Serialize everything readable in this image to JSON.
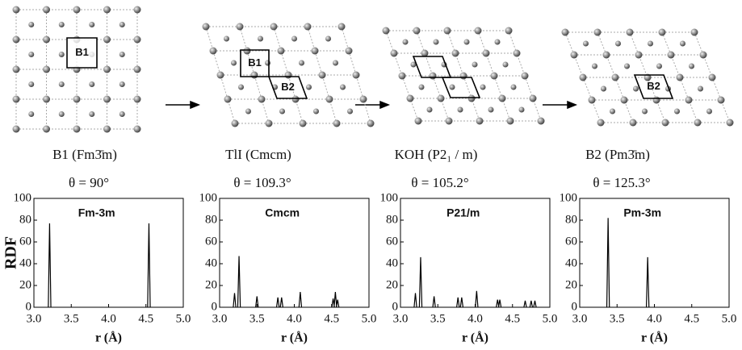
{
  "structures": [
    {
      "label": "B1 (Fm3̄m)",
      "angle": "θ = 90°",
      "cells": [
        "B1"
      ]
    },
    {
      "label": "TlI (Cmcm)",
      "angle": "θ = 109.3°",
      "cells": [
        "B1",
        "B2"
      ]
    },
    {
      "label": "KOH (P2₁ / m)",
      "angle": "θ = 105.2°",
      "cells": []
    },
    {
      "label": "B2 (Pm3̄m)",
      "angle": "θ = 125.3°",
      "cells": [
        "B2"
      ]
    }
  ],
  "chart_data": [
    {
      "type": "stem",
      "title": "Fm-3m",
      "xlabel": "r (Å)",
      "ylabel": "RDF",
      "color": "#000000",
      "grid": false,
      "x": [
        3.21,
        4.54
      ],
      "values": [
        77,
        77
      ],
      "xlim": [
        3.0,
        5.0
      ],
      "xticks": [
        {
          "value": 3,
          "label": "3.0"
        },
        3.5,
        {
          "value": 4,
          "label": "4.0"
        },
        4.5,
        {
          "value": 5,
          "label": "5.0"
        }
      ],
      "ylim": [
        0,
        100
      ],
      "yticks": [
        0,
        20,
        40,
        60,
        80,
        100
      ]
    },
    {
      "type": "stem",
      "title": "Cmcm",
      "xlabel": "r (Å)",
      "color": "#000000",
      "grid": false,
      "x": [
        3.2,
        3.26,
        3.5,
        3.78,
        3.83,
        4.08,
        4.52,
        4.55,
        4.58
      ],
      "values": [
        13,
        47,
        10,
        9,
        9,
        14,
        8,
        14,
        7
      ],
      "xlim": [
        3.0,
        5.0
      ],
      "xticks": [
        {
          "value": 3,
          "label": "3.0"
        },
        3.5,
        {
          "value": 4,
          "label": "4.0"
        },
        4.5,
        {
          "value": 5,
          "label": "5.0"
        }
      ],
      "ylim": [
        0,
        100
      ],
      "yticks": [
        0,
        20,
        40,
        60,
        80,
        100
      ]
    },
    {
      "type": "stem",
      "title": "P21/m",
      "xlabel": "r (Å)",
      "color": "#000000",
      "grid": false,
      "x": [
        3.2,
        3.27,
        3.45,
        3.77,
        3.82,
        4.02,
        4.3,
        4.33,
        4.67,
        4.75,
        4.8
      ],
      "values": [
        13,
        46,
        10,
        9,
        9,
        15,
        7,
        7,
        6,
        6,
        6
      ],
      "xlim": [
        3.0,
        5.0
      ],
      "xticks": [
        {
          "value": 3,
          "label": "3.0"
        },
        3.5,
        {
          "value": 4,
          "label": "4.0"
        },
        4.5,
        {
          "value": 5,
          "label": "5.0"
        }
      ],
      "ylim": [
        0,
        100
      ],
      "yticks": [
        0,
        20,
        40,
        60,
        80,
        100
      ]
    },
    {
      "type": "stem",
      "title": "Pm-3m",
      "xlabel": "r (Å)",
      "color": "#000000",
      "grid": false,
      "x": [
        3.38,
        3.91
      ],
      "values": [
        82,
        46
      ],
      "xlim": [
        3.0,
        5.0
      ],
      "xticks": [
        {
          "value": 3,
          "label": "3.0"
        },
        3.5,
        {
          "value": 4,
          "label": "4.0"
        },
        4.5,
        {
          "value": 5,
          "label": "5.0"
        }
      ],
      "ylim": [
        0,
        100
      ],
      "yticks": [
        0,
        20,
        40,
        60,
        80,
        100
      ]
    }
  ]
}
